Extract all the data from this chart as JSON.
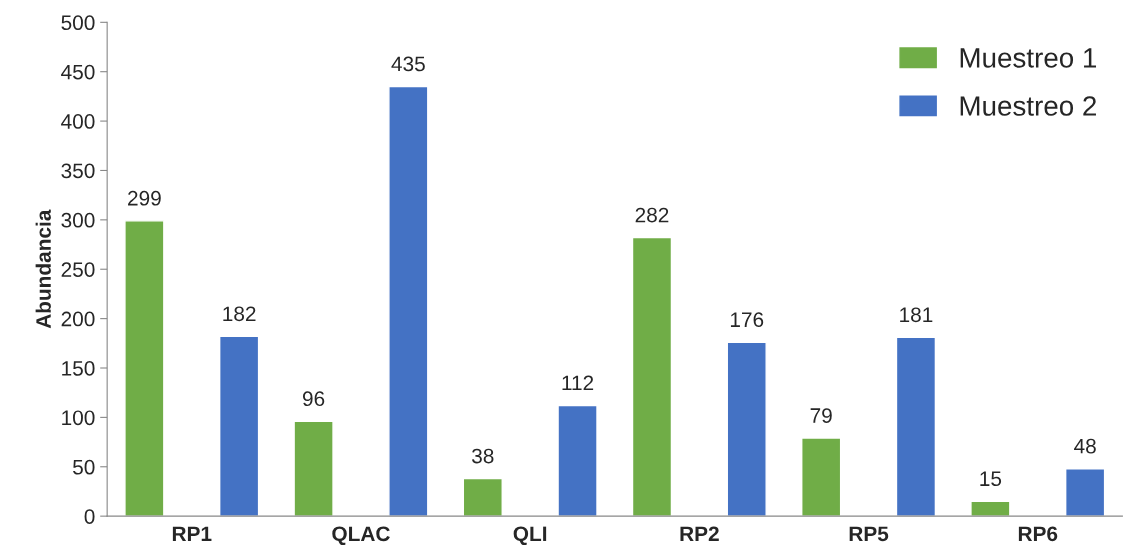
{
  "chart_data": {
    "type": "bar",
    "ylabel": "Abundancia",
    "categories": [
      "RP1",
      "QLAC",
      "QLI",
      "RP2",
      "RP5",
      "RP6"
    ],
    "series": [
      {
        "name": "Muestreo 1",
        "color": "#70ad47",
        "values": [
          299,
          96,
          38,
          282,
          79,
          15
        ]
      },
      {
        "name": "Muestreo 2",
        "color": "#4472c4",
        "values": [
          182,
          435,
          112,
          176,
          181,
          48
        ]
      }
    ],
    "ylim": [
      0,
      500
    ],
    "yticks": [
      0,
      50,
      100,
      150,
      200,
      250,
      300,
      350,
      400,
      450,
      500
    ],
    "data_labels": true,
    "grid": false,
    "legend": "top right"
  }
}
